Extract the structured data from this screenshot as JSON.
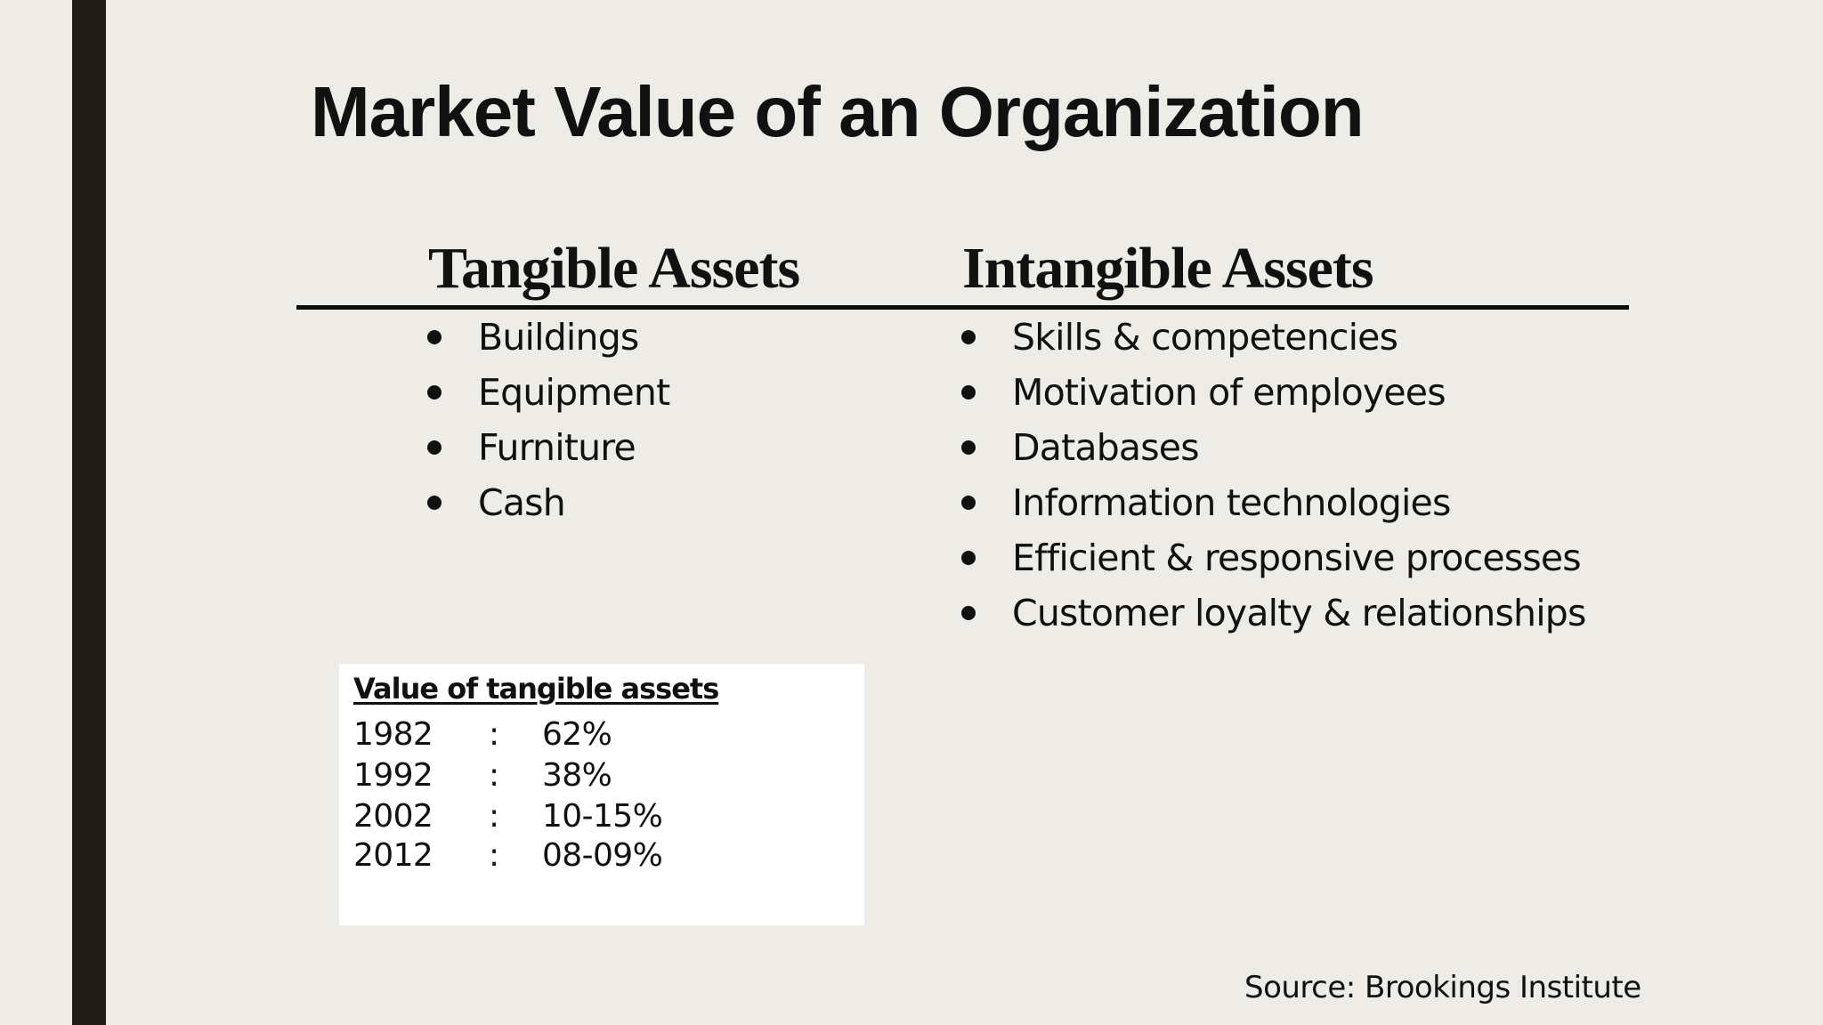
{
  "slide": {
    "title": "Market Value of an Organization",
    "source": "Source: Brookings Institute",
    "colors": {
      "background": "#edece6",
      "accent_bar": "#1e1e16",
      "text": "#111111"
    }
  },
  "tangible": {
    "heading": "Tangible Assets",
    "items": [
      {
        "label": "Buildings"
      },
      {
        "label": "Equipment"
      },
      {
        "label": "Furniture"
      },
      {
        "label": "Cash"
      }
    ]
  },
  "intangible": {
    "heading": "Intangible Assets",
    "items": [
      {
        "label": "Skills & competencies"
      },
      {
        "label": "Motivation of employees"
      },
      {
        "label": "Databases"
      },
      {
        "label": "Information technologies"
      },
      {
        "label": "Efficient & responsive processes"
      },
      {
        "label": "Customer loyalty & relationships"
      }
    ]
  },
  "value_box": {
    "title": "Value of tangible assets",
    "rows": [
      {
        "year": "1982",
        "sep": ":",
        "value": "62%"
      },
      {
        "year": "1992",
        "sep": ":",
        "value": "38%"
      },
      {
        "year": "2002",
        "sep": ":",
        "value": "10-15%"
      },
      {
        "year": "2012",
        "sep": ":",
        "value": "08-09%"
      }
    ]
  }
}
